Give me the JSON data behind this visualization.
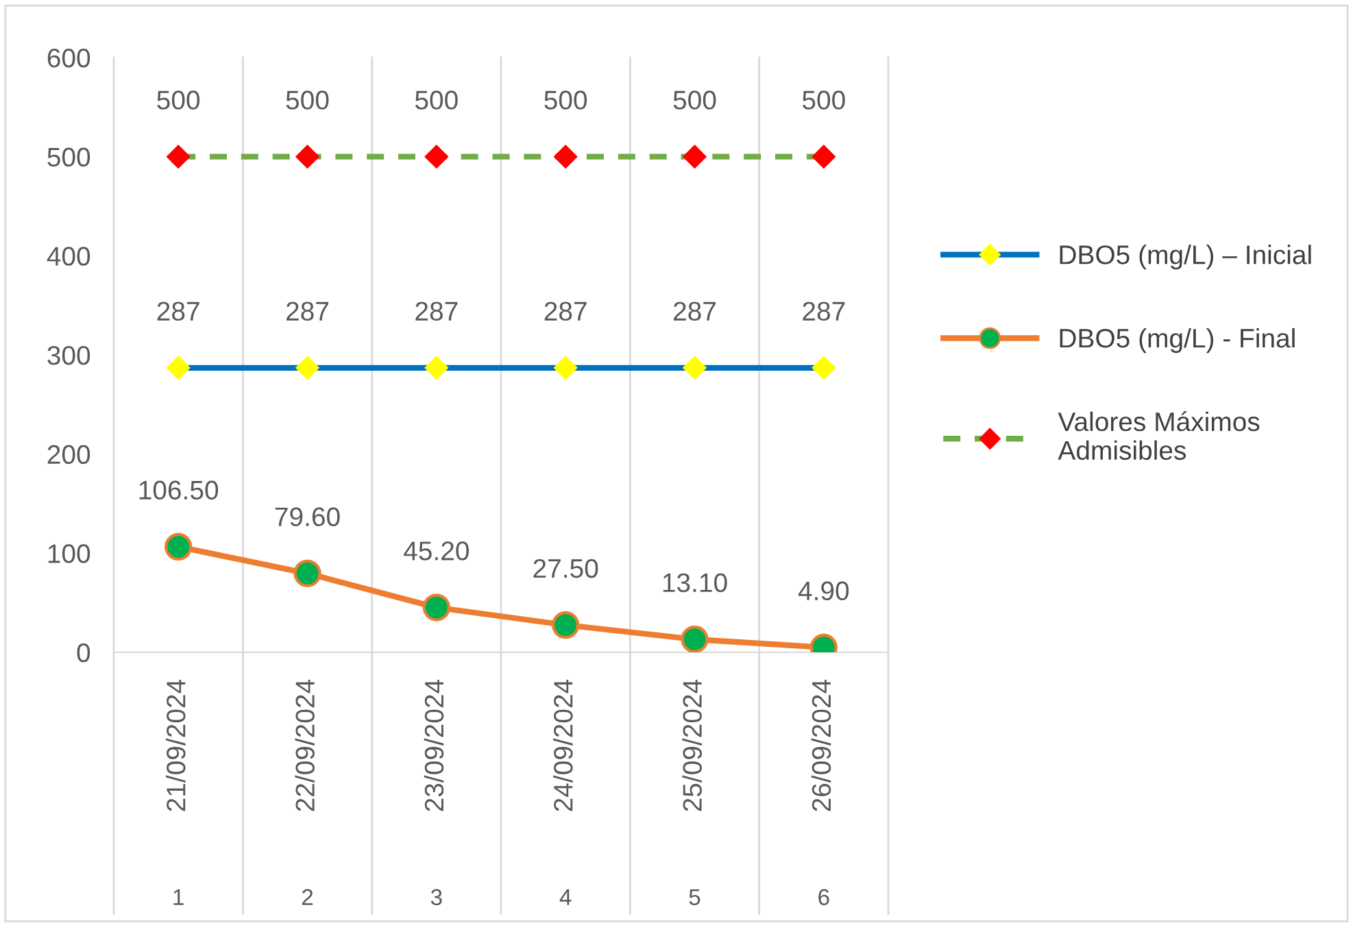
{
  "chart_data": {
    "type": "line",
    "categories": [
      "21/09/2024",
      "22/09/2024",
      "23/09/2024",
      "24/09/2024",
      "25/09/2024",
      "26/09/2024"
    ],
    "series": [
      {
        "name": "DBO5 (mg/L) – Inicial",
        "color": "#0070c0",
        "colors": [
          "#ffff00",
          "#ffff00",
          "#ffff00",
          "#ffff00",
          "#ffff00",
          "#ffff00"
        ],
        "marker": "diamond",
        "line_style": "solid",
        "values": [
          287,
          287,
          287,
          287,
          287,
          287
        ],
        "value_labels": [
          "287",
          "287",
          "287",
          "287",
          "287",
          "287"
        ]
      },
      {
        "name": "DBO5 (mg/L) - Final",
        "color": "#ed7d31",
        "colors": [
          "#00b050",
          "#00b050",
          "#00b050",
          "#00b050",
          "#00b050",
          "#00b050"
        ],
        "marker": "circle",
        "line_style": "solid",
        "values": [
          106.5,
          79.6,
          45.2,
          27.5,
          13.1,
          4.9
        ],
        "value_labels": [
          "106.50",
          "79.60",
          "45.20",
          "27.50",
          "13.10",
          "4.90"
        ]
      },
      {
        "name": "Valores Máximos Admisibles",
        "color": "#70ad47",
        "colors": [
          "#ff0000",
          "#ff0000",
          "#ff0000",
          "#ff0000",
          "#ff0000",
          "#ff0000"
        ],
        "marker": "diamond",
        "line_style": "dashed",
        "values": [
          500,
          500,
          500,
          500,
          500,
          500
        ],
        "value_labels": [
          "500",
          "500",
          "500",
          "500",
          "500",
          "500"
        ]
      }
    ],
    "ylim": [
      0,
      600
    ],
    "yticks": [
      0,
      100,
      200,
      300,
      400,
      500,
      600
    ],
    "grid": "x",
    "legend": "right",
    "annotations": [
      "1",
      "2",
      "3",
      "4",
      "5",
      "6"
    ]
  }
}
